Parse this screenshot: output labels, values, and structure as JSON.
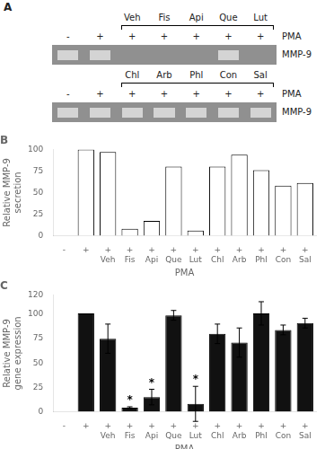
{
  "chart_data": [
    {
      "type": "gel",
      "title": "A",
      "color": "#909090",
      "band_color": "#d4d4d4",
      "rows": [
        {
          "name": "MMP-9",
          "xlabel": "PMA",
          "categories": [
            "-",
            "+",
            "+",
            "+",
            "+",
            "+",
            "+"
          ],
          "group_labels": [
            null,
            null,
            "Veh",
            "Fis",
            "Api",
            "Que",
            "Lut"
          ],
          "bands": [
            0,
            1,
            5
          ]
        },
        {
          "name": "MMP-9",
          "xlabel": "PMA",
          "categories": [
            "-",
            "+",
            "+",
            "+",
            "+",
            "+",
            "+"
          ],
          "group_labels": [
            null,
            null,
            "Chl",
            "Arb",
            "Phl",
            "Con",
            "Sal"
          ],
          "bands": [
            0,
            1,
            2,
            3,
            4,
            5,
            6
          ]
        }
      ]
    },
    {
      "type": "bar",
      "title": "B",
      "xlabel": "PMA",
      "ylabel": "Relative MMP-9\nsecretion",
      "categories": [
        "-",
        "+",
        "+",
        "+",
        "+",
        "+",
        "+",
        "+",
        "+",
        "+",
        "+",
        "+"
      ],
      "group_labels": [
        null,
        null,
        "Veh",
        "Fis",
        "Api",
        "Que",
        "Lut",
        "Chl",
        "Arb",
        "Phl",
        "Con",
        "Sal"
      ],
      "values": [
        0,
        100,
        97,
        8,
        17,
        80,
        6,
        80,
        94,
        76,
        58,
        61
      ],
      "color": "#ffffff",
      "ylim": [
        0,
        100
      ],
      "yticks": [
        0,
        25,
        50,
        75,
        100
      ],
      "grid": false
    },
    {
      "type": "bar",
      "title": "C",
      "xlabel": "PMA",
      "ylabel": "Relative MMP-9\ngene expression",
      "categories": [
        "-",
        "+",
        "+",
        "+",
        "+",
        "+",
        "+",
        "+",
        "+",
        "+",
        "+",
        "+"
      ],
      "group_labels": [
        null,
        null,
        "Veh",
        "Fis",
        "Api",
        "Que",
        "Lut",
        "Chl",
        "Arb",
        "Phl",
        "Con",
        "Sal"
      ],
      "values": [
        0,
        101,
        75,
        4,
        15,
        99,
        8,
        80,
        71,
        101,
        84,
        91
      ],
      "errors": [
        0,
        0,
        15,
        1,
        8,
        5,
        18,
        10,
        15,
        12,
        5,
        5
      ],
      "annotations": [
        {
          "category_index": 3,
          "text": "*"
        },
        {
          "category_index": 4,
          "text": "*"
        },
        {
          "category_index": 6,
          "text": "*"
        }
      ],
      "color": "#111111",
      "ylim": [
        0,
        120
      ],
      "yticks": [
        0,
        25,
        50,
        75,
        100,
        120
      ],
      "grid": false
    }
  ]
}
